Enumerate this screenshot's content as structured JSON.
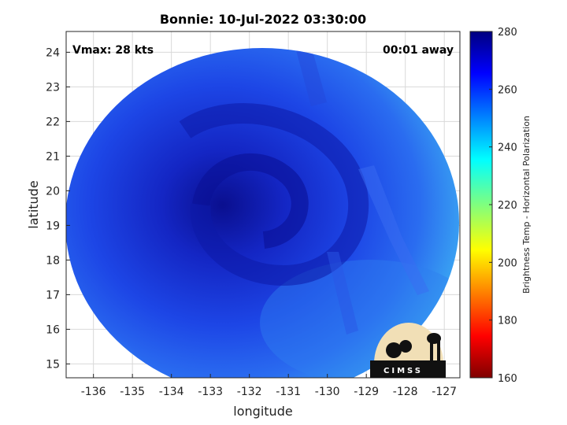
{
  "chart_data": {
    "type": "heatmap",
    "title": "Bonnie: 10-Jul-2022 03:30:00",
    "xlabel": "longitude",
    "ylabel": "latitude",
    "xlim": [
      -136.7,
      -126.6
    ],
    "ylim": [
      14.6,
      24.6
    ],
    "x_ticks": [
      -136,
      -135,
      -134,
      -133,
      -132,
      -131,
      -130,
      -129,
      -128,
      -127
    ],
    "y_ticks": [
      15,
      16,
      17,
      18,
      19,
      20,
      21,
      22,
      23,
      24
    ],
    "grid": true,
    "annotations": {
      "vmax": "Vmax: 28 kts",
      "time_offset": "00:01 away"
    },
    "storm_center": {
      "lon": -132.0,
      "lat": 20.1
    },
    "colorbar": {
      "label": "Brightness Temp - Horizontal Polarization",
      "range": [
        160,
        280
      ],
      "ticks": [
        160,
        180,
        200,
        220,
        240,
        260,
        280
      ],
      "colormap": "jet"
    },
    "logo": "CIMSS"
  },
  "colors": {
    "swath_outer": "#1a3fe0",
    "swath_inner": "#0a14a8",
    "edge_cyan": "#3fb6f0",
    "edge_green": "#6fd88a"
  }
}
